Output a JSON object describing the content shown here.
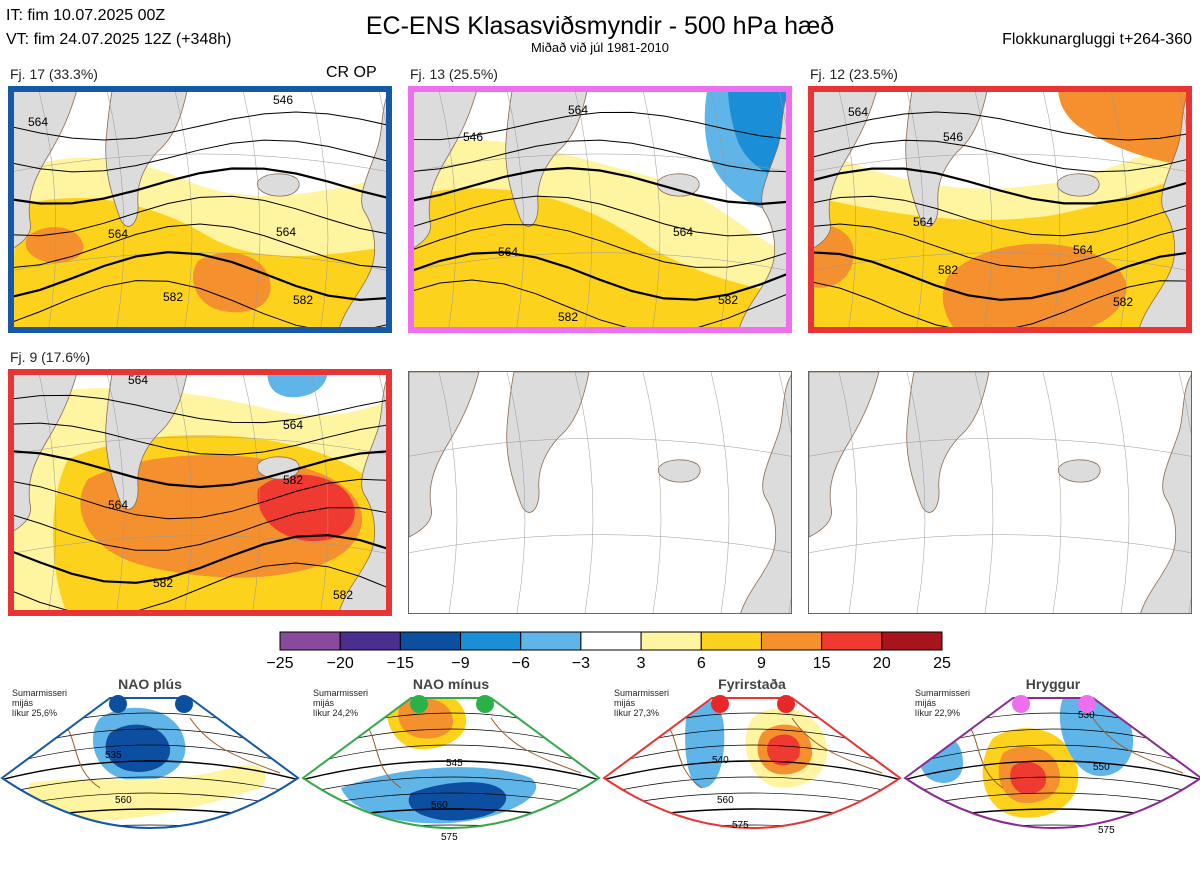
{
  "header": {
    "it_line": "IT: fim 10.07.2025 00Z",
    "vt_line": "VT: fim 24.07.2025 12Z  (+348h)",
    "title": "EC-ENS Klasasviðsmyndir - 500 hPa hæð",
    "subtitle": "Miðað við júl 1981-2010",
    "window": "Flokkunargluggi t+264-360"
  },
  "colors": {
    "neg25": "#8a4a9c",
    "neg20": "#4b2f8f",
    "neg15": "#0c4fa0",
    "neg9": "#1a8fd8",
    "neg6": "#5fb5e8",
    "neg3": "#ffffff",
    "pos3": "#fff4a0",
    "pos6": "#fcd21c",
    "pos9": "#f5902e",
    "pos15": "#ee3a30",
    "pos20": "#a8141c",
    "land": "#dcdcdc",
    "border_blue": "#1458a6",
    "border_pink": "#ee6fee",
    "border_red": "#e83434",
    "border_green": "#35a84a",
    "border_purple": "#8a2a92"
  },
  "panels": [
    {
      "label": "Fj. 17 (33.3%)",
      "tag": "CR OP",
      "border": "#1458a6",
      "contours": [
        "546",
        "564",
        "564",
        "582",
        "582",
        "564"
      ]
    },
    {
      "label": "Fj. 13 (25.5%)",
      "tag": "",
      "border": "#ee6fee",
      "contours": [
        "564",
        "564",
        "582",
        "582",
        "564",
        "546"
      ]
    },
    {
      "label": "Fj. 12 (23.5%)",
      "tag": "",
      "border": "#e83434",
      "contours": [
        "546",
        "564",
        "582",
        "564",
        "582",
        "564"
      ]
    },
    {
      "label": "Fj. 9 (17.6%)",
      "tag": "",
      "border": "#e83434",
      "contours": [
        "564",
        "564",
        "582",
        "582",
        "582",
        "564"
      ]
    }
  ],
  "chart_data": {
    "type": "heatmap",
    "title": "EC-ENS Klasasviðsmyndir - 500 hPa hæð",
    "colorbar": {
      "ticks": [
        "−25",
        "−20",
        "−15",
        "−9",
        "−6",
        "−3",
        "3",
        "6",
        "9",
        "15",
        "20",
        "25"
      ],
      "bins": [
        {
          "from": -25,
          "to": -20,
          "color": "#8a4a9c"
        },
        {
          "from": -20,
          "to": -15,
          "color": "#4b2f8f"
        },
        {
          "from": -15,
          "to": -9,
          "color": "#0c4fa0"
        },
        {
          "from": -9,
          "to": -6,
          "color": "#1a8fd8"
        },
        {
          "from": -6,
          "to": -3,
          "color": "#5fb5e8"
        },
        {
          "from": -3,
          "to": 3,
          "color": "#ffffff"
        },
        {
          "from": 3,
          "to": 6,
          "color": "#fff4a0"
        },
        {
          "from": 6,
          "to": 9,
          "color": "#fcd21c"
        },
        {
          "from": 9,
          "to": 15,
          "color": "#f5902e"
        },
        {
          "from": 15,
          "to": 20,
          "color": "#ee3a30"
        },
        {
          "from": 20,
          "to": 25,
          "color": "#a8141c"
        }
      ]
    },
    "clusters": [
      {
        "name": "Fj. 17",
        "percent": 33.3
      },
      {
        "name": "Fj. 13",
        "percent": 25.5
      },
      {
        "name": "Fj. 12",
        "percent": 23.5
      },
      {
        "name": "Fj. 9",
        "percent": 17.6
      }
    ]
  },
  "regimes": [
    {
      "name": "NAO plús",
      "l1": "Sumarmisseri",
      "l2": "mijás",
      "l3": "líkur 25,6%",
      "color": "#1458a6",
      "dot": "#0c4fa0",
      "labels": [
        "535",
        "560"
      ]
    },
    {
      "name": "NAO mínus",
      "l1": "Sumarmisseri",
      "l2": "mijás",
      "l3": "líkur 24,2%",
      "color": "#35a84a",
      "dot": "#2bb14a",
      "labels": [
        "545",
        "560",
        "575"
      ]
    },
    {
      "name": "Fyrirstaða",
      "l1": "Sumarmisseri",
      "l2": "mijás",
      "l3": "líkur 27,3%",
      "color": "#e83434",
      "dot": "#e82828",
      "labels": [
        "540",
        "560",
        "575"
      ]
    },
    {
      "name": "Hryggur",
      "l1": "Sumarmisseri",
      "l2": "mijás",
      "l3": "líkur 22,9%",
      "color": "#8a2a92",
      "dot": "#ee6fee",
      "labels": [
        "530",
        "550",
        "575"
      ]
    }
  ]
}
